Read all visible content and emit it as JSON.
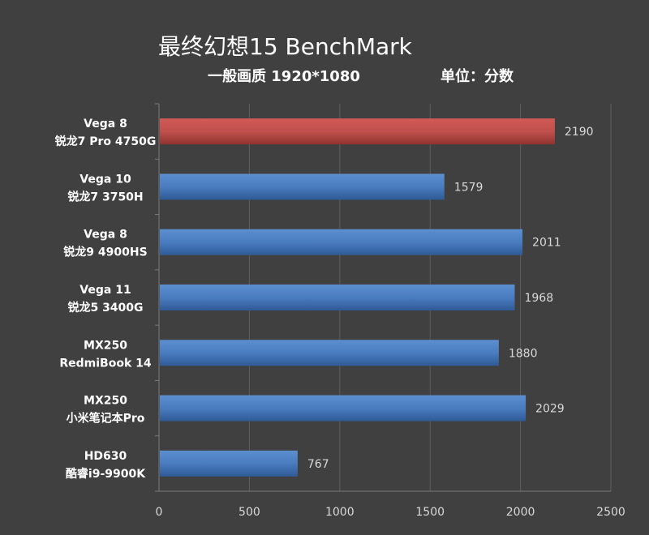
{
  "title": "最终幻想15 BenchMark",
  "subtitle_left": "一般画质 1920*1080",
  "subtitle_right": "单位：分数",
  "colors": {
    "background": "#404040",
    "highlight_bar": "#c0504d",
    "normal_bar": "#4f81bd",
    "gridline": "#5e5e5e"
  },
  "chart_data": {
    "type": "bar",
    "orientation": "horizontal",
    "categories": [
      [
        "Vega 8",
        "锐龙7 Pro 4750G"
      ],
      [
        "Vega 10",
        "锐龙7 3750H"
      ],
      [
        "Vega 8",
        "锐龙9 4900HS"
      ],
      [
        "Vega 11",
        "锐龙5 3400G"
      ],
      [
        "MX250",
        "RedmiBook 14"
      ],
      [
        "MX250",
        "小米笔记本Pro"
      ],
      [
        "HD630",
        "酷睿i9-9900K"
      ]
    ],
    "values": [
      2190,
      1579,
      2011,
      1968,
      1880,
      2029,
      767
    ],
    "highlight_index": 0,
    "xlim": [
      0,
      2500
    ],
    "xticks": [
      0,
      500,
      1000,
      1500,
      2000,
      2500
    ],
    "grid": true
  }
}
